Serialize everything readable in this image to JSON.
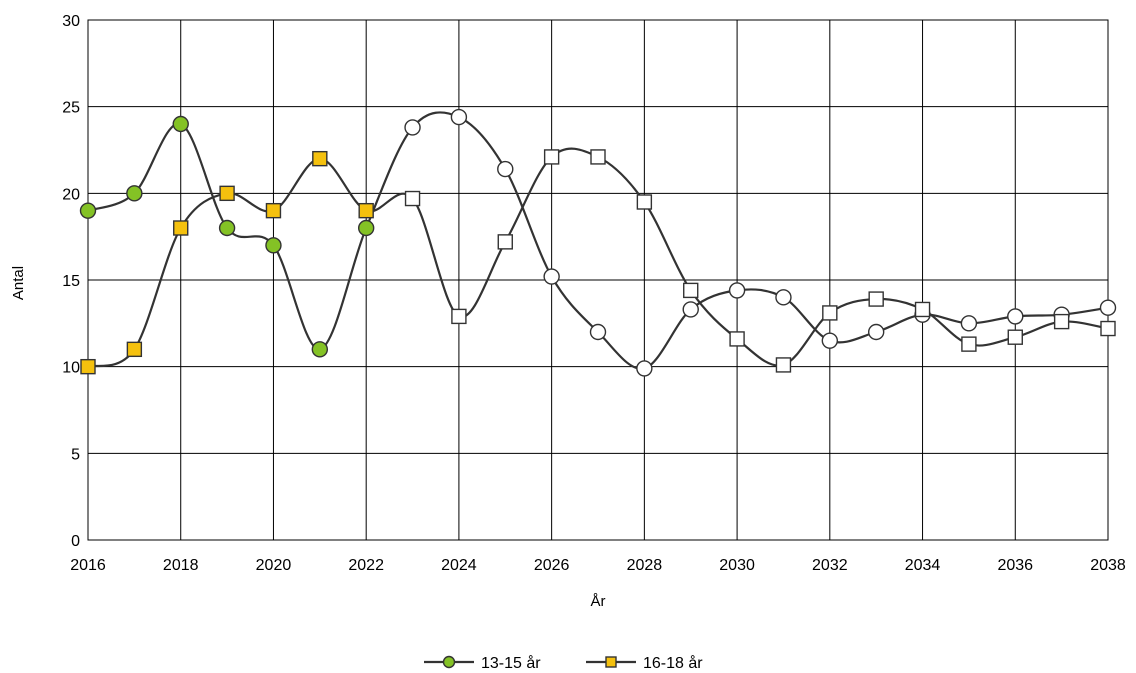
{
  "chart_data": {
    "type": "line",
    "title": "",
    "xlabel": "År",
    "ylabel": "Antal",
    "xlim": [
      2016,
      2038
    ],
    "ylim": [
      0,
      30
    ],
    "x_ticks": [
      2016,
      2018,
      2020,
      2022,
      2024,
      2026,
      2028,
      2030,
      2032,
      2034,
      2036,
      2038
    ],
    "y_ticks": [
      0,
      5,
      10,
      15,
      20,
      25,
      30
    ],
    "grid": true,
    "legend_position": "bottom",
    "x": [
      2016,
      2017,
      2018,
      2019,
      2020,
      2021,
      2022,
      2023,
      2024,
      2025,
      2026,
      2027,
      2028,
      2029,
      2030,
      2031,
      2032,
      2033,
      2034,
      2035,
      2036,
      2037,
      2038
    ],
    "historical_until": 2022,
    "series": [
      {
        "name": "13-15 år",
        "marker": "circle",
        "color": "#84c225",
        "projection_color": "#ffffff",
        "values": [
          19,
          20,
          24,
          18,
          17,
          11,
          18,
          23.8,
          24.4,
          21.4,
          15.2,
          12,
          9.9,
          13.3,
          14.4,
          14,
          11.5,
          12,
          13,
          12.5,
          12.9,
          13,
          13.4
        ]
      },
      {
        "name": "16-18 år",
        "marker": "square",
        "color": "#f5c10e",
        "projection_color": "#ffffff",
        "values": [
          10,
          11,
          18,
          20,
          19,
          22,
          19,
          19.7,
          12.9,
          17.2,
          22.1,
          22.1,
          19.5,
          14.4,
          11.6,
          10.1,
          13.1,
          13.9,
          13.3,
          11.3,
          11.7,
          12.6,
          12.2
        ]
      }
    ]
  }
}
